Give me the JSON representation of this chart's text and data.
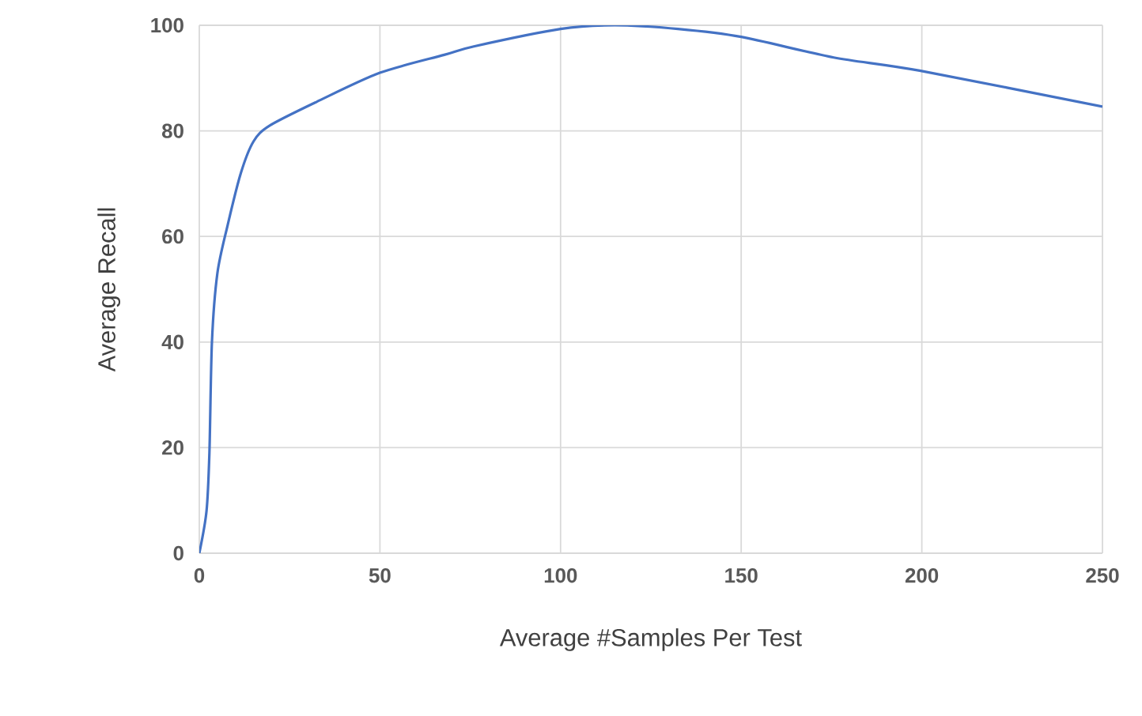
{
  "chart_data": {
    "type": "line",
    "xlabel": "Average #Samples Per Test",
    "ylabel": "Average Recall",
    "series": [
      {
        "color": "#4472c4",
        "x": [
          0,
          2,
          2.8,
          3.5,
          5,
          7.8,
          11.5,
          15,
          19.5,
          32.5,
          50,
          67.8,
          76,
          100,
          115,
          132.5,
          150,
          175.6,
          199.4,
          250
        ],
        "values": [
          0,
          8,
          19,
          40,
          53,
          62,
          72,
          78,
          81,
          85.5,
          91,
          94.4,
          96,
          99.3,
          100,
          99.3,
          97.8,
          93.9,
          91.4,
          84.6
        ]
      }
    ],
    "xlim": [
      0,
      250
    ],
    "xticks": [
      0,
      50,
      100,
      150,
      200,
      250
    ],
    "ylim": [
      0,
      100
    ],
    "yticks": [
      0,
      20,
      40,
      60,
      80,
      100
    ],
    "grid": true,
    "marker": "none",
    "line_style": "solid"
  }
}
